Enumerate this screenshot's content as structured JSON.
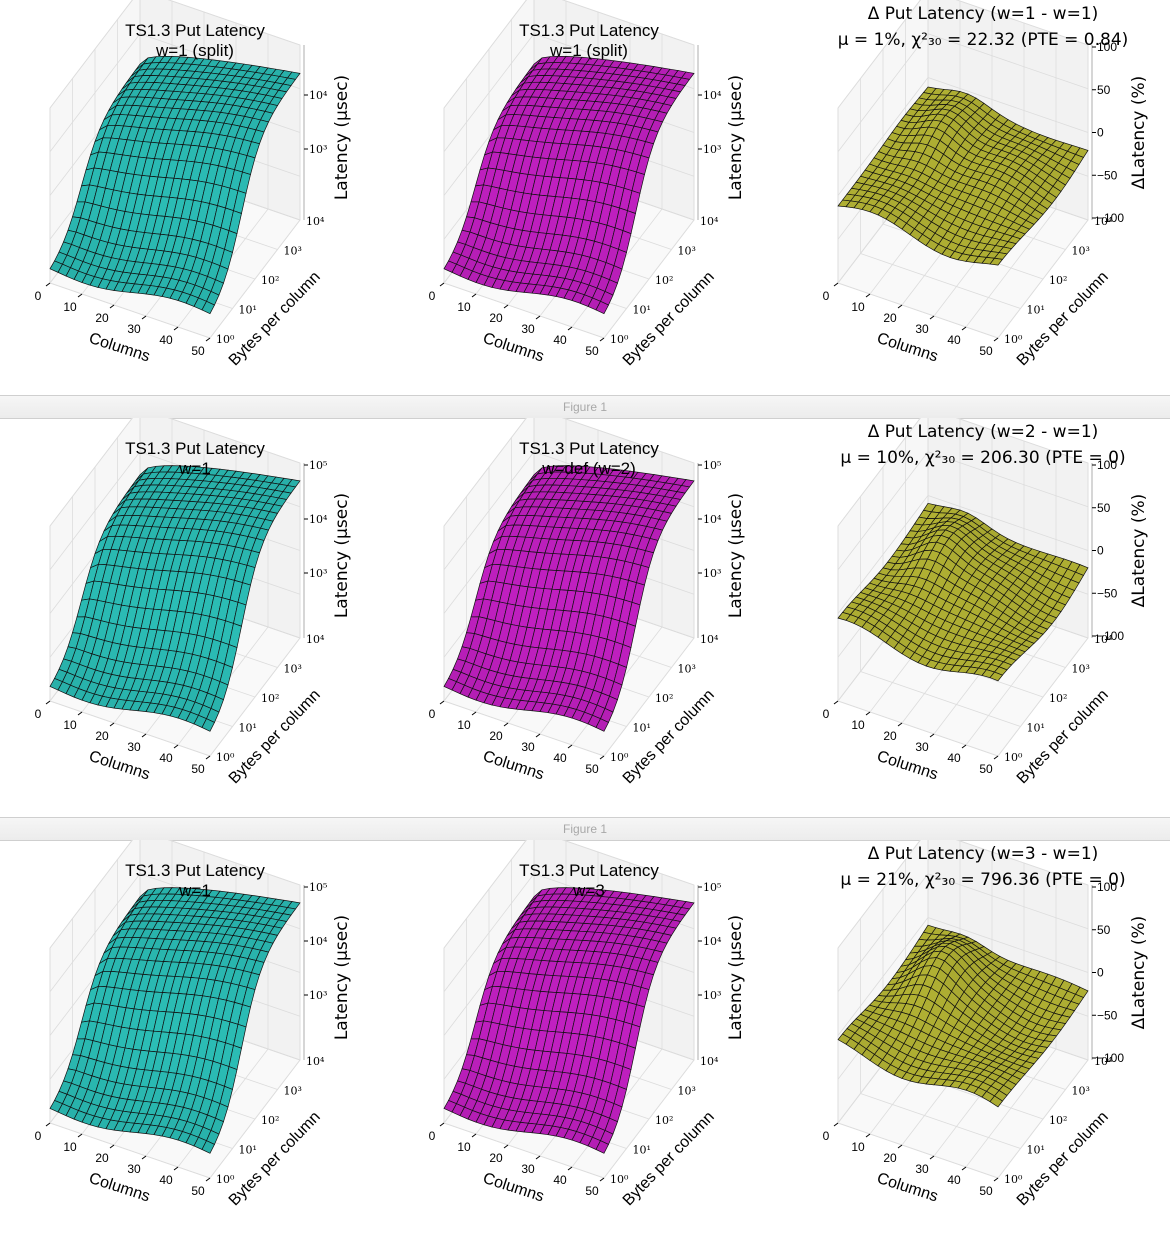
{
  "figure": {
    "label": "Figure 1"
  },
  "colors": {
    "cyan": "#2ec8c0",
    "magenta": "#cc22cc",
    "olive": "#c6c63a",
    "pane": "#f2f2f2",
    "grid": "#dcdcdc"
  },
  "axes": {
    "x_label": "Columns",
    "x_ticks": [
      "0",
      "10",
      "20",
      "30",
      "40",
      "50"
    ],
    "y_label": "Bytes per column",
    "y_ticks": [
      "10⁰",
      "10¹",
      "10²",
      "10³",
      "10⁴"
    ],
    "z_label_latency": "Latency (μsec)",
    "z_label_delta": "ΔLatency (%)",
    "z_ticks_delta": [
      "100",
      "50",
      "0",
      "−50",
      "−100"
    ]
  },
  "rows": [
    {
      "left": {
        "title1": "TS1.3 Put Latency",
        "title2": "w=1 (split)",
        "z_ticks": [
          "10⁴",
          "10³"
        ]
      },
      "middle": {
        "title1": "TS1.3 Put Latency",
        "title2": "w=1 (split)",
        "z_ticks": [
          "10⁴",
          "10³"
        ]
      },
      "right": {
        "title1": "Δ Put Latency (w=1 - w=1)",
        "title2": "μ = 1%, χ²₃₀ = 22.32 (PTE = 0.84)"
      }
    },
    {
      "left": {
        "title1": "TS1.3 Put Latency",
        "title2": "w=1",
        "z_ticks": [
          "10⁵",
          "10⁴",
          "10³"
        ]
      },
      "middle": {
        "title1": "TS1.3 Put Latency",
        "title2": "w=def (w=2)",
        "z_ticks": [
          "10⁵",
          "10⁴",
          "10³"
        ]
      },
      "right": {
        "title1": "Δ Put Latency (w=2 - w=1)",
        "title2": "μ = 10%, χ²₃₀ = 206.30 (PTE = 0)"
      }
    },
    {
      "left": {
        "title1": "TS1.3 Put Latency",
        "title2": "w=1",
        "z_ticks": [
          "10⁵",
          "10⁴",
          "10³"
        ]
      },
      "middle": {
        "title1": "TS1.3 Put Latency",
        "title2": "w=3",
        "z_ticks": [
          "10⁵",
          "10⁴",
          "10³"
        ]
      },
      "right": {
        "title1": "Δ Put Latency (w=3 - w=1)",
        "title2": "μ = 21%, χ²₃₀ = 796.36 (PTE = 0)"
      }
    }
  ],
  "chart_data": [
    {
      "type": "surface",
      "title": "TS1.3 Put Latency w=1 (split)",
      "xlabel": "Columns",
      "ylabel": "Bytes per column",
      "zlabel": "Latency (μsec)",
      "xlim": [
        0,
        50
      ],
      "ylim_log10": [
        0,
        4
      ],
      "zscale": "log",
      "surface_summary": {
        "x": [
          0,
          10,
          20,
          30,
          40,
          50
        ],
        "log10_bytes": [
          0,
          1,
          2,
          3,
          4
        ],
        "log10_latency_at_min_bytes": [
          2.2,
          2.2,
          2.3,
          2.4,
          2.5,
          2.6
        ],
        "log10_latency_at_max_bytes": [
          3.9,
          4.2,
          4.4,
          4.5,
          4.6,
          4.6
        ]
      }
    },
    {
      "type": "surface",
      "title": "TS1.3 Put Latency w=1 (split)",
      "xlabel": "Columns",
      "ylabel": "Bytes per column",
      "zlabel": "Latency (μsec)",
      "xlim": [
        0,
        50
      ],
      "ylim_log10": [
        0,
        4
      ],
      "zscale": "log",
      "surface_summary": {
        "x": [
          0,
          10,
          20,
          30,
          40,
          50
        ],
        "log10_bytes": [
          0,
          1,
          2,
          3,
          4
        ],
        "log10_latency_at_min_bytes": [
          2.2,
          2.2,
          2.3,
          2.4,
          2.5,
          2.6
        ],
        "log10_latency_at_max_bytes": [
          3.9,
          4.2,
          4.4,
          4.5,
          4.6,
          4.6
        ]
      }
    },
    {
      "type": "surface",
      "title": "Δ Put Latency (w=1 - w=1)",
      "xlabel": "Columns",
      "ylabel": "Bytes per column",
      "zlabel": "ΔLatency (%)",
      "xlim": [
        0,
        50
      ],
      "ylim_log10": [
        0,
        4
      ],
      "zlim": [
        -100,
        100
      ],
      "mu_percent": 1,
      "chi2_30": 22.32,
      "PTE": 0.84
    },
    {
      "type": "surface",
      "title": "TS1.3 Put Latency w=1",
      "xlabel": "Columns",
      "ylabel": "Bytes per column",
      "zlabel": "Latency (μsec)",
      "xlim": [
        0,
        50
      ],
      "ylim_log10": [
        0,
        4
      ],
      "zscale": "log",
      "surface_summary": {
        "x": [
          0,
          10,
          20,
          30,
          40,
          50
        ],
        "log10_bytes": [
          0,
          1,
          2,
          3,
          4
        ],
        "log10_latency_at_min_bytes": [
          2.2,
          2.2,
          2.3,
          2.4,
          2.5,
          2.6
        ],
        "log10_latency_at_max_bytes": [
          4.2,
          4.5,
          4.7,
          4.8,
          4.9,
          4.9
        ]
      }
    },
    {
      "type": "surface",
      "title": "TS1.3 Put Latency w=def (w=2)",
      "xlabel": "Columns",
      "ylabel": "Bytes per column",
      "zlabel": "Latency (μsec)",
      "xlim": [
        0,
        50
      ],
      "ylim_log10": [
        0,
        4
      ],
      "zscale": "log",
      "surface_summary": {
        "x": [
          0,
          10,
          20,
          30,
          40,
          50
        ],
        "log10_bytes": [
          0,
          1,
          2,
          3,
          4
        ],
        "log10_latency_at_min_bytes": [
          2.2,
          2.2,
          2.3,
          2.4,
          2.5,
          2.6
        ],
        "log10_latency_at_max_bytes": [
          4.2,
          4.5,
          4.7,
          4.8,
          4.9,
          4.9
        ]
      }
    },
    {
      "type": "surface",
      "title": "Δ Put Latency (w=2 - w=1)",
      "xlabel": "Columns",
      "ylabel": "Bytes per column",
      "zlabel": "ΔLatency (%)",
      "xlim": [
        0,
        50
      ],
      "ylim_log10": [
        0,
        4
      ],
      "zlim": [
        -100,
        100
      ],
      "mu_percent": 10,
      "chi2_30": 206.3,
      "PTE": 0
    },
    {
      "type": "surface",
      "title": "TS1.3 Put Latency w=1",
      "xlabel": "Columns",
      "ylabel": "Bytes per column",
      "zlabel": "Latency (μsec)",
      "xlim": [
        0,
        50
      ],
      "ylim_log10": [
        0,
        4
      ],
      "zscale": "log",
      "surface_summary": {
        "x": [
          0,
          10,
          20,
          30,
          40,
          50
        ],
        "log10_bytes": [
          0,
          1,
          2,
          3,
          4
        ],
        "log10_latency_at_min_bytes": [
          2.2,
          2.2,
          2.3,
          2.4,
          2.5,
          2.6
        ],
        "log10_latency_at_max_bytes": [
          4.2,
          4.5,
          4.7,
          4.8,
          4.9,
          4.9
        ]
      }
    },
    {
      "type": "surface",
      "title": "TS1.3 Put Latency w=3",
      "xlabel": "Columns",
      "ylabel": "Bytes per column",
      "zlabel": "Latency (μsec)",
      "xlim": [
        0,
        50
      ],
      "ylim_log10": [
        0,
        4
      ],
      "zscale": "log",
      "surface_summary": {
        "x": [
          0,
          10,
          20,
          30,
          40,
          50
        ],
        "log10_bytes": [
          0,
          1,
          2,
          3,
          4
        ],
        "log10_latency_at_min_bytes": [
          2.2,
          2.2,
          2.3,
          2.4,
          2.5,
          2.6
        ],
        "log10_latency_at_max_bytes": [
          4.2,
          4.5,
          4.7,
          4.8,
          4.9,
          4.9
        ]
      }
    },
    {
      "type": "surface",
      "title": "Δ Put Latency (w=3 - w=1)",
      "xlabel": "Columns",
      "ylabel": "Bytes per column",
      "zlabel": "ΔLatency (%)",
      "xlim": [
        0,
        50
      ],
      "ylim_log10": [
        0,
        4
      ],
      "zlim": [
        -100,
        100
      ],
      "mu_percent": 21,
      "chi2_30": 796.36,
      "PTE": 0
    }
  ]
}
